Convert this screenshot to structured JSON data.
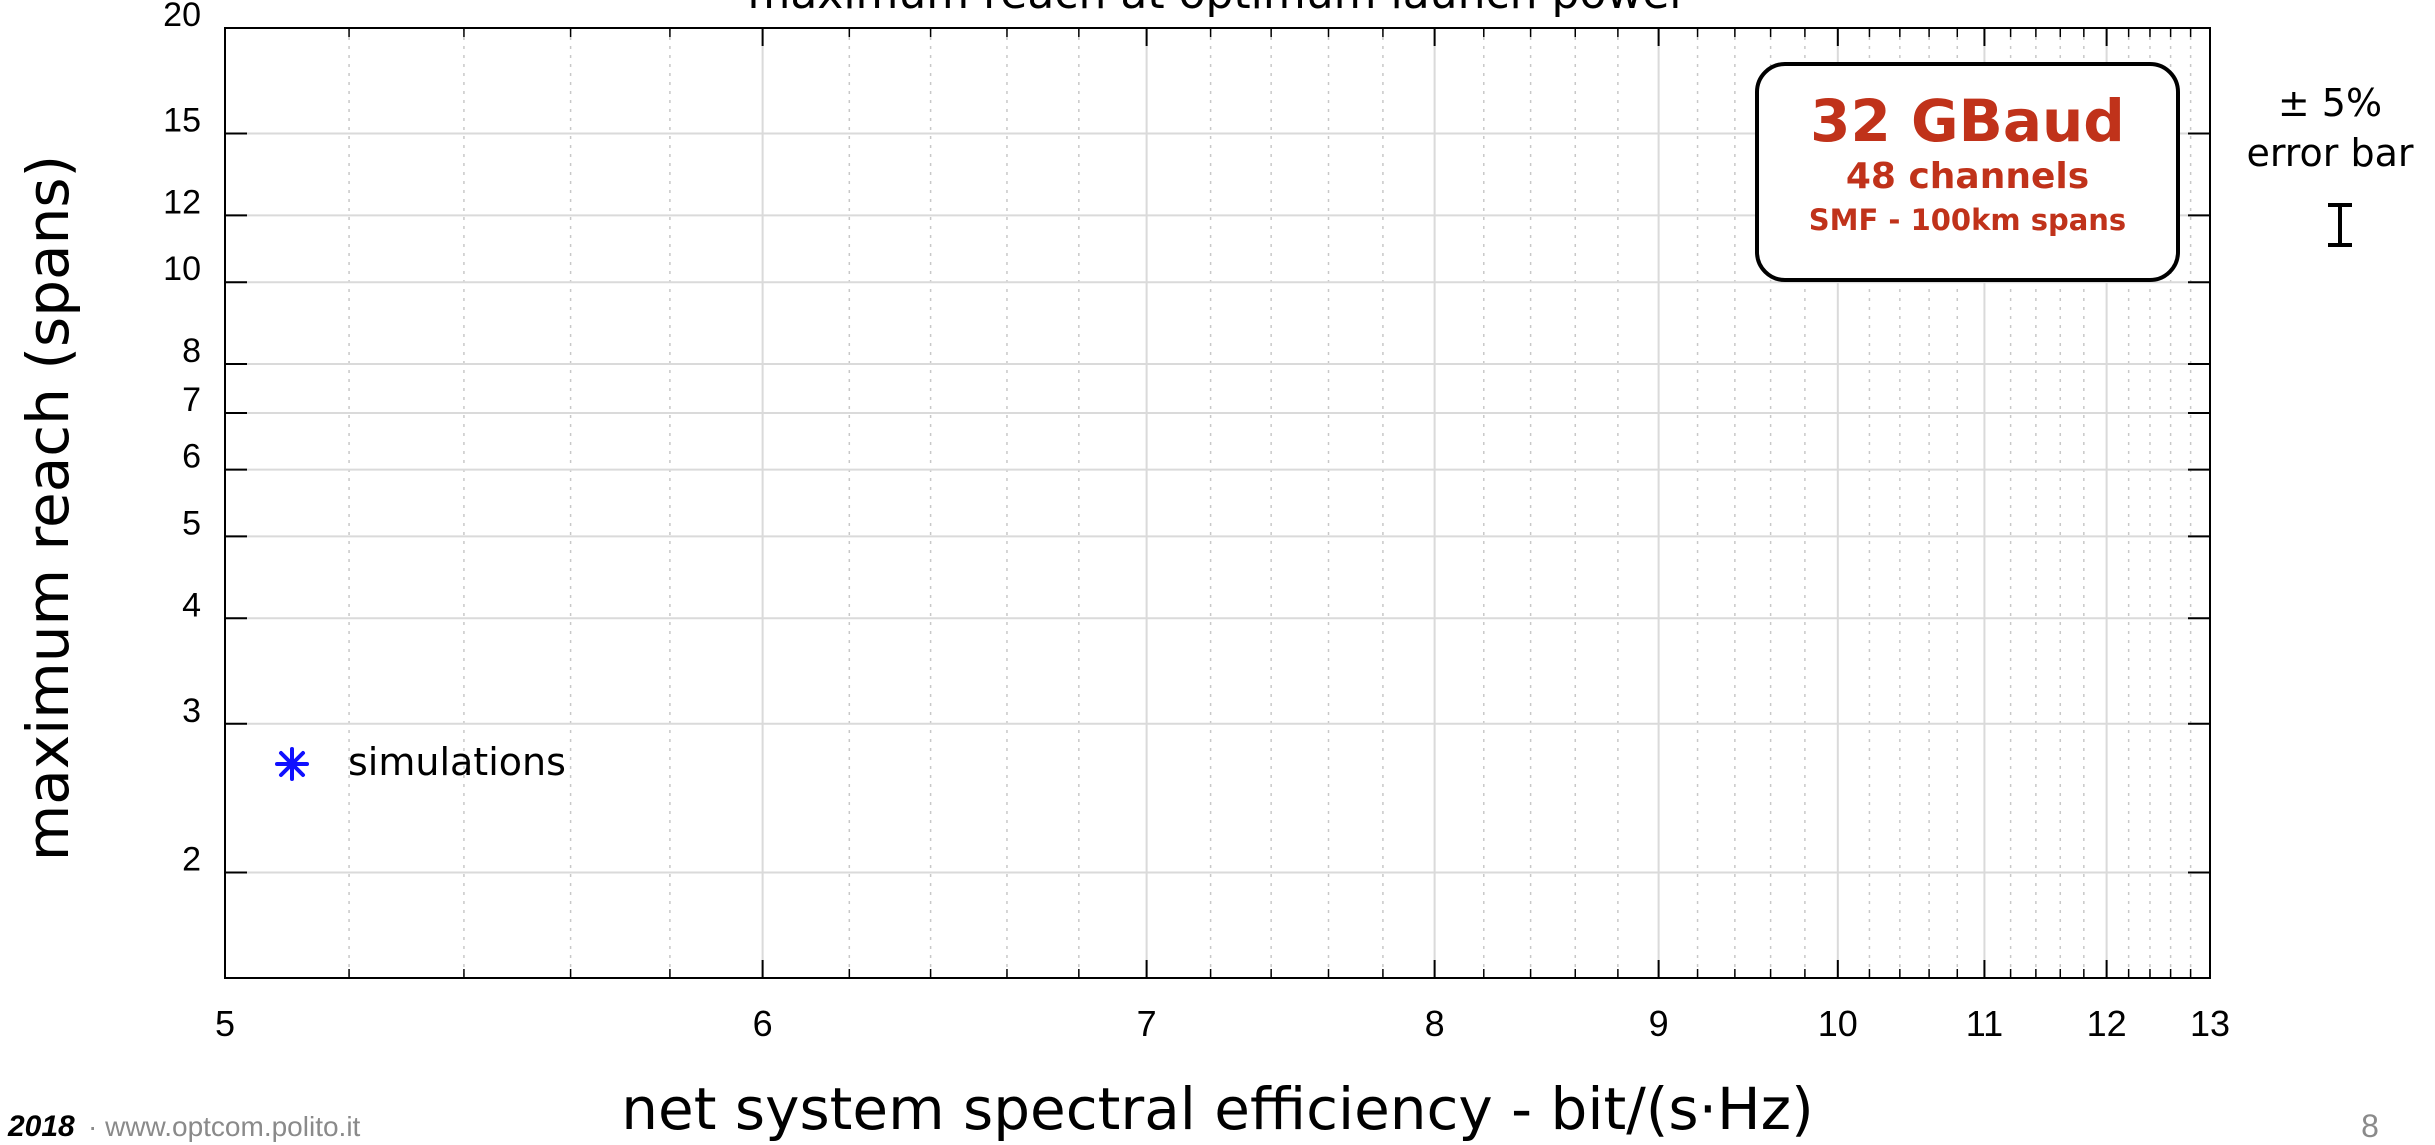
{
  "chart_data": {
    "type": "scatter",
    "title": "maximum reach at optimum launch power",
    "xlabel": "net system spectral efficiency - bit/(s·Hz)",
    "ylabel": "maximum reach (spans)",
    "xlim": [
      5,
      13
    ],
    "ylim": [
      1.5,
      20
    ],
    "x_scale": "reciprocal",
    "y_scale": "log",
    "x_ticks": [
      5,
      6,
      7,
      8,
      9,
      10,
      11,
      12,
      13
    ],
    "y_ticks": [
      2,
      3,
      4,
      5,
      6,
      7,
      8,
      10,
      12,
      15,
      20
    ],
    "grid": true,
    "legend_position": "bottom-left",
    "series": [
      {
        "name": "simulations",
        "marker": "asterisk",
        "color": "#1010ff",
        "points": []
      }
    ],
    "annotations": {
      "box_line1": "32 GBaud",
      "box_line2": "48 channels",
      "box_line3": "SMF - 100km spans",
      "errorbar_line1": "± 5%",
      "errorbar_line2": "error bar"
    }
  },
  "footer": {
    "year": "2018",
    "url": "www.optcom.polito.it",
    "page_number": "8"
  },
  "colors": {
    "accent_text": "#c0321a",
    "series_marker": "#1010ff"
  }
}
